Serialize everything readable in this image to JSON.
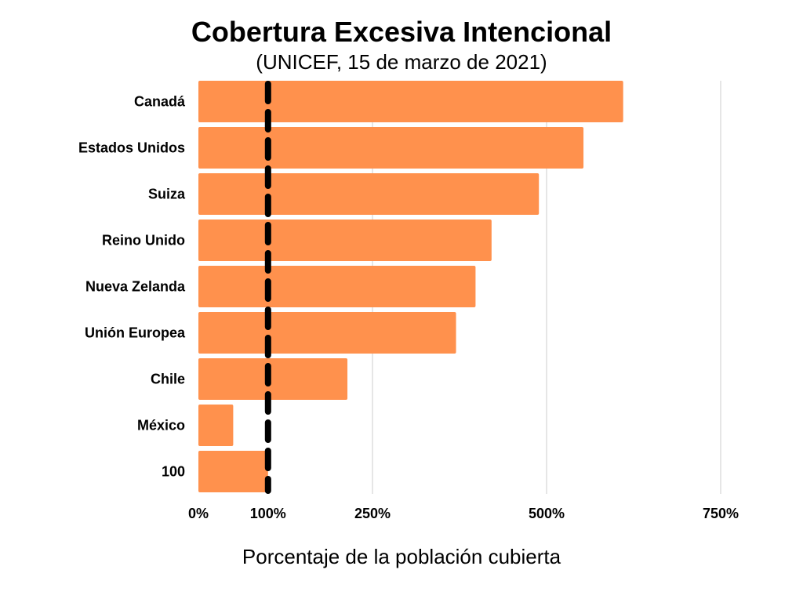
{
  "chart_data": {
    "type": "bar",
    "orientation": "horizontal",
    "title": "Cobertura Excesiva Intencional",
    "subtitle": "(UNICEF, 15 de marzo de 2021)",
    "xlabel": "Porcentaje de la población cubierta",
    "ylabel": "",
    "categories": [
      "Canadá",
      "Estados Unidos",
      "Suiza",
      "Reino Unido",
      "Nueva Zelanda",
      "Unión Europea",
      "Chile",
      "México",
      "100"
    ],
    "values": [
      610,
      553,
      489,
      421,
      398,
      370,
      214,
      50,
      100
    ],
    "xlim": [
      0,
      750
    ],
    "xticks": [
      {
        "value": 0,
        "label": "0%"
      },
      {
        "value": 100,
        "label": "100%"
      },
      {
        "value": 250,
        "label": "250%"
      },
      {
        "value": 500,
        "label": "500%"
      },
      {
        "value": 750,
        "label": "750%"
      }
    ],
    "gridlines_at": [
      250,
      500,
      750
    ],
    "reference_line": {
      "value": 100,
      "style": "dashed",
      "color": "#000000"
    },
    "grid": true,
    "legend": "none",
    "colors": {
      "bar": "#FF914D",
      "grid": "#CCCCCC"
    }
  }
}
